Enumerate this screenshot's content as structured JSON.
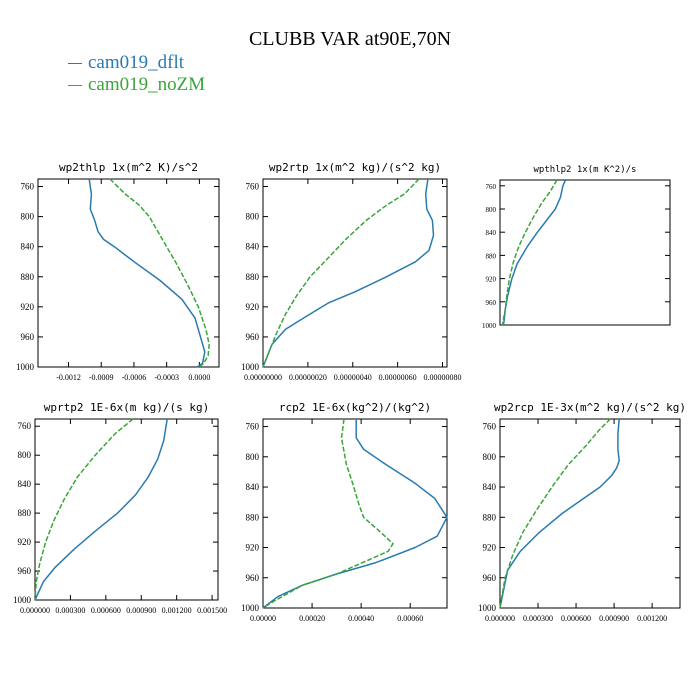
{
  "figure": {
    "title": "CLUBB VAR at90E,70N",
    "legend": [
      {
        "label": "cam019_dflt",
        "color": "#2a7ab0"
      },
      {
        "label": "cam019_noZM",
        "color": "#3aa53a"
      }
    ]
  },
  "chart_data": [
    {
      "type": "line",
      "title": "wp2thlp   1x(m^2 K)/s^2",
      "xlabel": "",
      "ylabel": "",
      "xlim": [
        -0.00148,
        0.00018
      ],
      "ylim": [
        1000,
        750
      ],
      "xticks": [
        "-0.0012",
        "-0.0009",
        "-0.0006",
        "-0.0003",
        "0.0000"
      ],
      "xtick_values": [
        -0.0012,
        -0.0009,
        -0.0006,
        -0.0003,
        0.0
      ],
      "yticks": [
        760,
        800,
        840,
        880,
        920,
        960,
        1000
      ],
      "series": [
        {
          "name": "cam019_dflt",
          "color": "#2a7ab0",
          "dash": "",
          "points": [
            [
              -0.00101,
              750
            ],
            [
              -0.00099,
              770
            ],
            [
              -0.001,
              790
            ],
            [
              -0.00096,
              805
            ],
            [
              -0.00093,
              820
            ],
            [
              -0.00088,
              830
            ],
            [
              -0.00078,
              840
            ],
            [
              -0.0006,
              860
            ],
            [
              -0.00036,
              885
            ],
            [
              -0.00016,
              910
            ],
            [
              -4e-05,
              935
            ],
            [
              1e-05,
              960
            ],
            [
              5e-05,
              980
            ],
            [
              3e-05,
              995
            ],
            [
              -2e-05,
              1000
            ]
          ]
        },
        {
          "name": "cam019_noZM",
          "color": "#3aa53a",
          "dash": "5,2",
          "points": [
            [
              -0.00082,
              750
            ],
            [
              -0.00068,
              770
            ],
            [
              -0.00055,
              785
            ],
            [
              -0.00046,
              800
            ],
            [
              -0.00034,
              830
            ],
            [
              -0.00022,
              860
            ],
            [
              -0.00011,
              890
            ],
            [
              -1e-05,
              920
            ],
            [
              6e-05,
              950
            ],
            [
              9e-05,
              970
            ],
            [
              8e-05,
              985
            ],
            [
              4e-05,
              995
            ],
            [
              0.0,
              1000
            ]
          ]
        }
      ]
    },
    {
      "type": "line",
      "title": "wp2rtp   1x(m^2 kg)/(s^2 kg)",
      "xlabel": "",
      "ylabel": "",
      "xlim": [
        0.0,
        8.2e-07
      ],
      "ylim": [
        1000,
        750
      ],
      "xticks": [
        "0.00000000",
        "0.00000020",
        "0.00000040",
        "0.00000060",
        "0.00000080"
      ],
      "xtick_values": [
        0.0,
        2e-07,
        4e-07,
        6e-07,
        8e-07
      ],
      "yticks": [
        760,
        800,
        840,
        880,
        920,
        960,
        1000
      ],
      "series": [
        {
          "name": "cam019_dflt",
          "color": "#2a7ab0",
          "dash": "",
          "points": [
            [
              7.35e-07,
              750
            ],
            [
              7.25e-07,
              770
            ],
            [
              7.3e-07,
              790
            ],
            [
              7.55e-07,
              805
            ],
            [
              7.6e-07,
              825
            ],
            [
              7.4e-07,
              845
            ],
            [
              6.8e-07,
              860
            ],
            [
              5.5e-07,
              880
            ],
            [
              4.1e-07,
              900
            ],
            [
              2.9e-07,
              915
            ],
            [
              1.8e-07,
              935
            ],
            [
              1e-07,
              950
            ],
            [
              4e-08,
              970
            ],
            [
              0.0,
              1000
            ]
          ]
        },
        {
          "name": "cam019_noZM",
          "color": "#3aa53a",
          "dash": "5,2",
          "points": [
            [
              6.95e-07,
              750
            ],
            [
              6.3e-07,
              770
            ],
            [
              5.5e-07,
              785
            ],
            [
              4.6e-07,
              805
            ],
            [
              3.7e-07,
              830
            ],
            [
              2.9e-07,
              855
            ],
            [
              2.1e-07,
              880
            ],
            [
              1.5e-07,
              905
            ],
            [
              1e-07,
              930
            ],
            [
              6e-08,
              955
            ],
            [
              2e-08,
              985
            ],
            [
              0.0,
              1000
            ]
          ]
        }
      ]
    },
    {
      "type": "line",
      "title": "wpthlp2   1x(m K^2)/s",
      "xlabel": "",
      "ylabel": "",
      "xlim": [
        0.0,
        1.0
      ],
      "ylim": [
        1000,
        750
      ],
      "xticks": [],
      "xtick_values": [],
      "yticks": [
        760,
        800,
        840,
        880,
        920,
        960,
        1000
      ],
      "series": [
        {
          "name": "cam019_dflt",
          "color": "#2a7ab0",
          "dash": "",
          "points": [
            [
              0.385,
              750
            ],
            [
              0.37,
              760
            ],
            [
              0.355,
              780
            ],
            [
              0.325,
              800
            ],
            [
              0.26,
              825
            ],
            [
              0.22,
              840
            ],
            [
              0.16,
              865
            ],
            [
              0.1,
              895
            ],
            [
              0.07,
              920
            ],
            [
              0.045,
              950
            ],
            [
              0.03,
              975
            ],
            [
              0.025,
              990
            ],
            [
              0.02,
              1000
            ]
          ]
        },
        {
          "name": "cam019_noZM",
          "color": "#3aa53a",
          "dash": "5,2",
          "points": [
            [
              0.335,
              750
            ],
            [
              0.295,
              770
            ],
            [
              0.245,
              790
            ],
            [
              0.195,
              815
            ],
            [
              0.15,
              840
            ],
            [
              0.11,
              865
            ],
            [
              0.08,
              890
            ],
            [
              0.055,
              920
            ],
            [
              0.04,
              950
            ],
            [
              0.03,
              975
            ],
            [
              0.02,
              990
            ],
            [
              0.015,
              1000
            ]
          ]
        }
      ]
    },
    {
      "type": "line",
      "title": "wprtp2   1E-6x(m kg)/(s kg)",
      "xlabel": "",
      "ylabel": "",
      "xlim": [
        0.0,
        0.00155
      ],
      "ylim": [
        1000,
        750
      ],
      "xticks": [
        "0.000000",
        "0.000300",
        "0.000600",
        "0.000900",
        "0.001200",
        "0.001500"
      ],
      "xtick_values": [
        0.0,
        0.0003,
        0.0006,
        0.0009,
        0.0012,
        0.0015
      ],
      "yticks": [
        760,
        800,
        840,
        880,
        920,
        960,
        1000
      ],
      "series": [
        {
          "name": "cam019_dflt",
          "color": "#2a7ab0",
          "dash": "",
          "points": [
            [
              0.00112,
              750
            ],
            [
              0.00109,
              780
            ],
            [
              0.00104,
              805
            ],
            [
              0.00096,
              830
            ],
            [
              0.00085,
              855
            ],
            [
              0.0007,
              880
            ],
            [
              0.00051,
              905
            ],
            [
              0.00033,
              930
            ],
            [
              0.00017,
              955
            ],
            [
              7e-05,
              975
            ],
            [
              0.0,
              1000
            ]
          ]
        },
        {
          "name": "cam019_noZM",
          "color": "#3aa53a",
          "dash": "5,2",
          "points": [
            [
              0.00083,
              750
            ],
            [
              0.00068,
              770
            ],
            [
              0.00051,
              800
            ],
            [
              0.00036,
              830
            ],
            [
              0.00025,
              860
            ],
            [
              0.00016,
              890
            ],
            [
              9e-05,
              920
            ],
            [
              4e-05,
              950
            ],
            [
              1e-05,
              975
            ],
            [
              0.0,
              1000
            ]
          ]
        }
      ]
    },
    {
      "type": "line",
      "title": "rcp2   1E-6x(kg^2)/(kg^2)",
      "xlabel": "",
      "ylabel": "",
      "xlim": [
        0.0,
        0.00075
      ],
      "ylim": [
        1000,
        750
      ],
      "xticks": [
        "0.00000",
        "0.00020",
        "0.00040",
        "0.00060"
      ],
      "xtick_values": [
        0.0,
        0.0002,
        0.0004,
        0.0006
      ],
      "yticks": [
        760,
        800,
        840,
        880,
        920,
        960,
        1000
      ],
      "series": [
        {
          "name": "cam019_dflt",
          "color": "#2a7ab0",
          "dash": "",
          "points": [
            [
              0.00038,
              750
            ],
            [
              0.00038,
              775
            ],
            [
              0.00041,
              790
            ],
            [
              0.0005,
              810
            ],
            [
              0.00062,
              835
            ],
            [
              0.0007,
              855
            ],
            [
              0.00075,
              880
            ],
            [
              0.00071,
              905
            ],
            [
              0.00062,
              920
            ],
            [
              0.00046,
              940
            ],
            [
              0.0003,
              955
            ],
            [
              0.00016,
              970
            ],
            [
              6e-05,
              985
            ],
            [
              0.0,
              1000
            ]
          ]
        },
        {
          "name": "cam019_noZM",
          "color": "#3aa53a",
          "dash": "5,2",
          "points": [
            [
              0.00033,
              750
            ],
            [
              0.00032,
              775
            ],
            [
              0.00034,
              810
            ],
            [
              0.00037,
              840
            ],
            [
              0.00039,
              862
            ],
            [
              0.00041,
              880
            ],
            [
              0.00048,
              900
            ],
            [
              0.00053,
              915
            ],
            [
              0.00051,
              925
            ],
            [
              0.00044,
              935
            ],
            [
              0.0003,
              955
            ],
            [
              0.00016,
              970
            ],
            [
              5e-05,
              990
            ],
            [
              0.0,
              1000
            ]
          ]
        }
      ]
    },
    {
      "type": "line",
      "title": "wp2rcp   1E-3x(m^2 kg)/(s^2 kg)",
      "xlabel": "",
      "ylabel": "",
      "xlim": [
        0.0,
        0.00142
      ],
      "ylim": [
        1000,
        750
      ],
      "xticks": [
        "0.000000",
        "0.000300",
        "0.000600",
        "0.000900",
        "0.001200"
      ],
      "xtick_values": [
        0.0,
        0.0003,
        0.0006,
        0.0009,
        0.0012
      ],
      "yticks": [
        760,
        800,
        840,
        880,
        920,
        960,
        1000
      ],
      "series": [
        {
          "name": "cam019_dflt",
          "color": "#2a7ab0",
          "dash": "",
          "points": [
            [
              0.00094,
              750
            ],
            [
              0.00093,
              770
            ],
            [
              0.00093,
              790
            ],
            [
              0.00094,
              805
            ],
            [
              0.00092,
              815
            ],
            [
              0.00088,
              825
            ],
            [
              0.00079,
              840
            ],
            [
              0.00066,
              855
            ],
            [
              0.00049,
              875
            ],
            [
              0.00031,
              900
            ],
            [
              0.00016,
              925
            ],
            [
              6e-05,
              950
            ],
            [
              0.0,
              1000
            ]
          ]
        },
        {
          "name": "cam019_noZM",
          "color": "#3aa53a",
          "dash": "5,2",
          "points": [
            [
              0.00087,
              750
            ],
            [
              0.00078,
              765
            ],
            [
              0.00068,
              785
            ],
            [
              0.00054,
              810
            ],
            [
              0.00041,
              840
            ],
            [
              0.00029,
              870
            ],
            [
              0.00018,
              900
            ],
            [
              0.0001,
              930
            ],
            [
              4e-05,
              960
            ],
            [
              0.0,
              1000
            ]
          ]
        }
      ]
    }
  ]
}
